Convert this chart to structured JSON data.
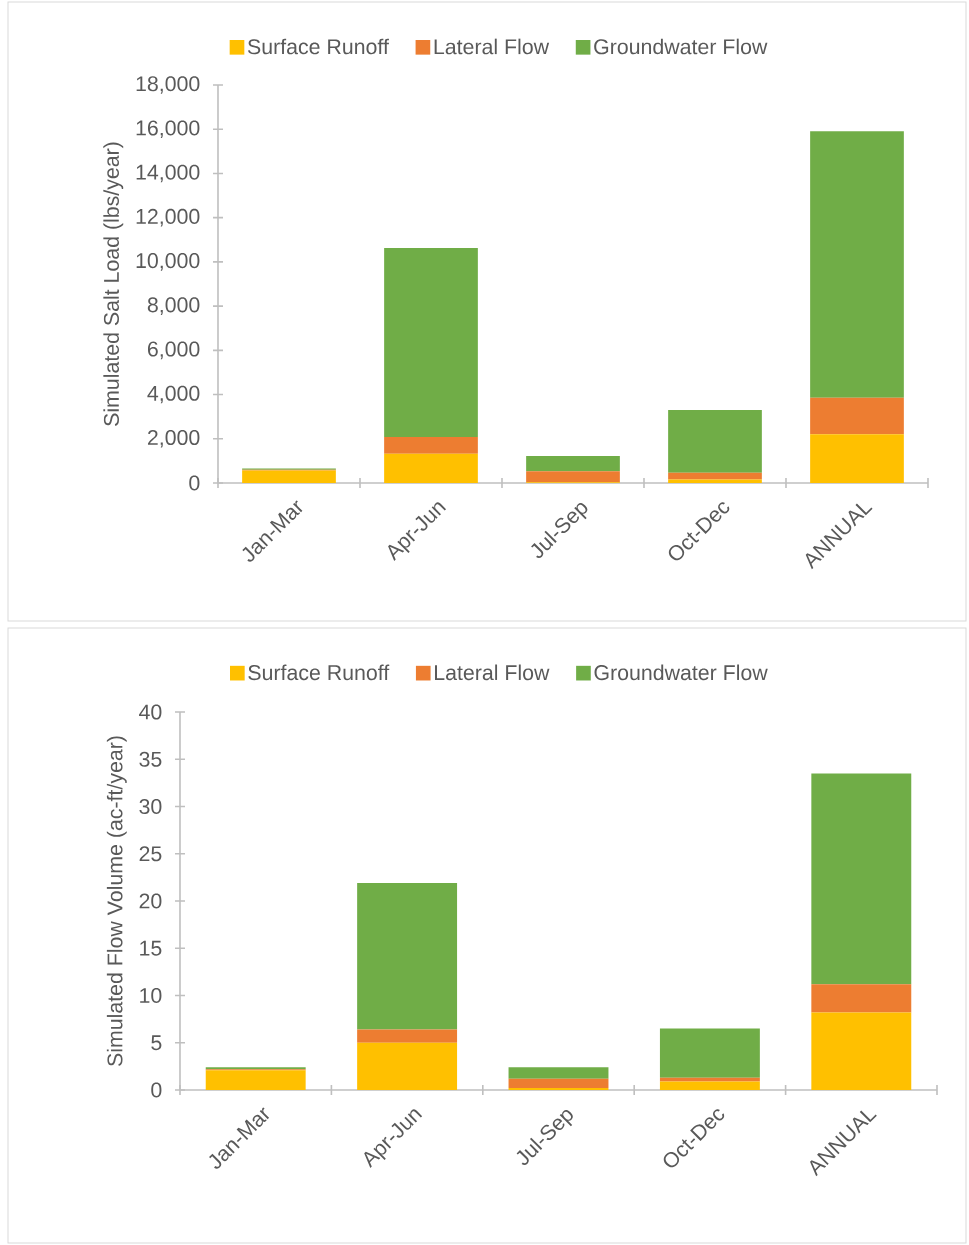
{
  "chart_data": [
    {
      "type": "bar",
      "stacked": true,
      "legend": "top",
      "ylabel": "Simulated Salt Load (lbs/year)",
      "categories": [
        "Jan-Mar",
        "Apr-Jun",
        "Jul-Sep",
        "Oct-Dec",
        "ANNUAL"
      ],
      "ylim": [
        0,
        18000
      ],
      "yticks": [
        0,
        {
          "value": 2000,
          "label": "2,000"
        },
        {
          "value": 4000,
          "label": "4,000"
        },
        {
          "value": 6000,
          "label": "6,000"
        },
        {
          "value": 8000,
          "label": "8,000"
        },
        {
          "value": 10000,
          "label": "10,000"
        },
        {
          "value": 12000,
          "label": "12,000"
        },
        {
          "value": 14000,
          "label": "14,000"
        },
        {
          "value": 16000,
          "label": "16,000"
        },
        {
          "value": 18000,
          "label": "18,000"
        }
      ],
      "series": [
        {
          "name": "Surface Runoff",
          "color": "#ffc000",
          "values": [
            560,
            1320,
            30,
            160,
            2200
          ]
        },
        {
          "name": "Lateral Flow",
          "color": "#ed7d31",
          "values": [
            40,
            760,
            500,
            300,
            1650
          ]
        },
        {
          "name": "Groundwater Flow",
          "color": "#70ad47",
          "values": [
            50,
            8550,
            690,
            2840,
            12060
          ]
        }
      ]
    },
    {
      "type": "bar",
      "stacked": true,
      "legend": "top",
      "ylabel": "Simulated Flow Volume (ac-ft/year)",
      "categories": [
        "Jan-Mar",
        "Apr-Jun",
        "Jul-Sep",
        "Oct-Dec",
        "ANNUAL"
      ],
      "ylim": [
        0,
        40
      ],
      "yticks": [
        0,
        5,
        10,
        15,
        20,
        25,
        30,
        35,
        40
      ],
      "series": [
        {
          "name": "Surface Runoff",
          "color": "#ffc000",
          "values": [
            2.1,
            5.0,
            0.2,
            0.9,
            8.2
          ]
        },
        {
          "name": "Lateral Flow",
          "color": "#ed7d31",
          "values": [
            0.1,
            1.4,
            1.0,
            0.4,
            3.0
          ]
        },
        {
          "name": "Groundwater Flow",
          "color": "#70ad47",
          "values": [
            0.2,
            15.5,
            1.2,
            5.2,
            22.3
          ]
        }
      ]
    }
  ]
}
